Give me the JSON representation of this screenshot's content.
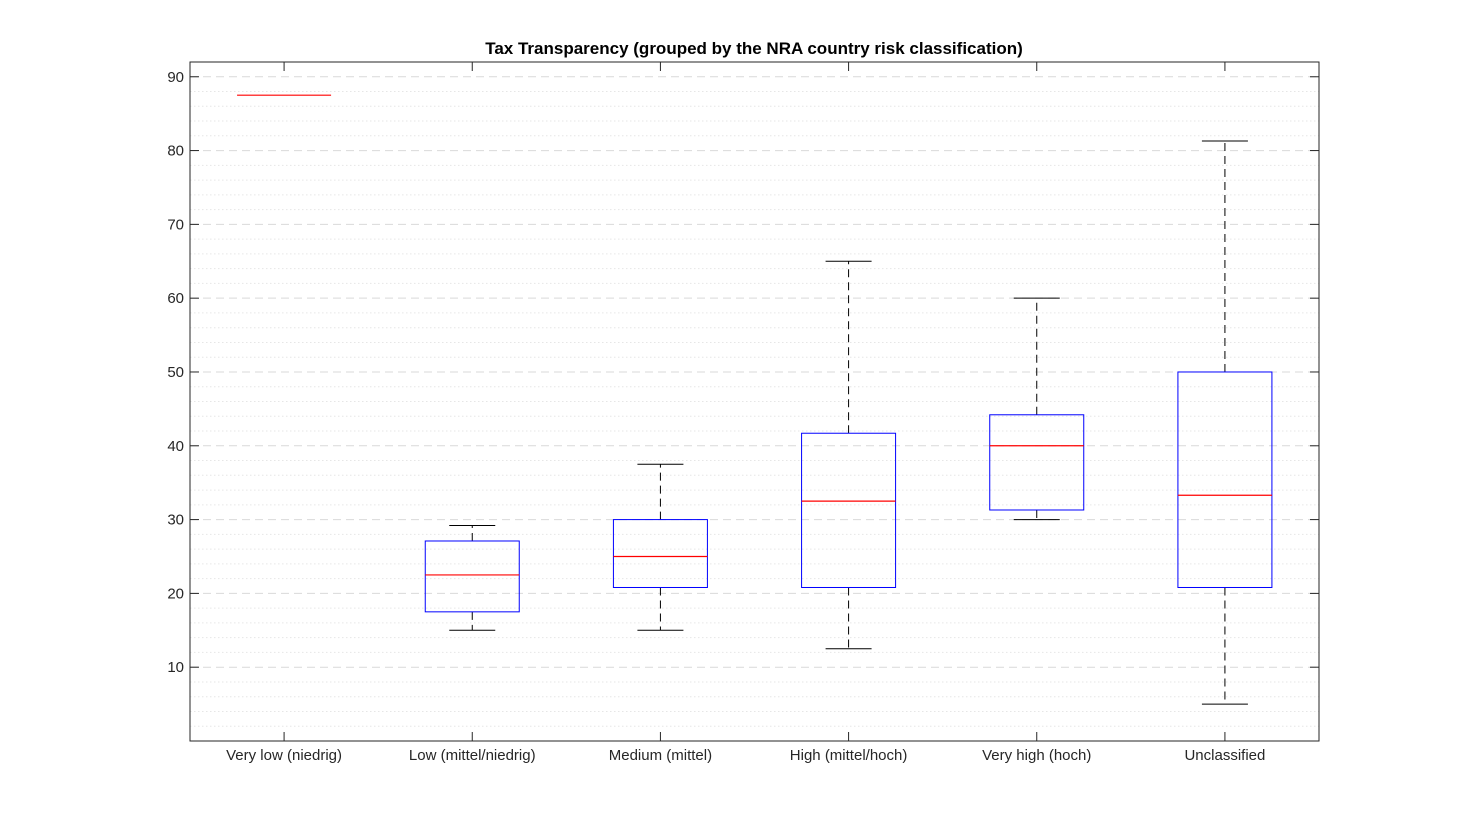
{
  "chart_data": {
    "type": "boxplot",
    "title": "Tax Transparency (grouped by the NRA country risk classification)",
    "xlabel": "",
    "ylabel": "",
    "ylim": [
      0,
      92
    ],
    "yticks": [
      10,
      20,
      30,
      40,
      50,
      60,
      70,
      80,
      90
    ],
    "ytick_labels": [
      "10",
      "20",
      "30",
      "40",
      "50",
      "60",
      "70",
      "80",
      "90"
    ],
    "grid": {
      "major": true,
      "minor": true,
      "style": "dashed"
    },
    "categories": [
      "Very low (niedrig)",
      "Low (mittel/niedrig)",
      "Medium (mittel)",
      "High (mittel/hoch)",
      "Very high (hoch)",
      "Unclassified"
    ],
    "boxes": [
      {
        "category": "Very low (niedrig)",
        "whisker_low": 87.5,
        "q1": 87.5,
        "median": 87.5,
        "q3": 87.5,
        "whisker_high": 87.5
      },
      {
        "category": "Low (mittel/niedrig)",
        "whisker_low": 15.0,
        "q1": 17.5,
        "median": 22.5,
        "q3": 27.1,
        "whisker_high": 29.2
      },
      {
        "category": "Medium (mittel)",
        "whisker_low": 15.0,
        "q1": 20.8,
        "median": 25.0,
        "q3": 30.0,
        "whisker_high": 37.5
      },
      {
        "category": "High (mittel/hoch)",
        "whisker_low": 12.5,
        "q1": 20.8,
        "median": 32.5,
        "q3": 41.7,
        "whisker_high": 65.0
      },
      {
        "category": "Very high (hoch)",
        "whisker_low": 30.0,
        "q1": 31.3,
        "median": 40.0,
        "q3": 44.2,
        "whisker_high": 60.0
      },
      {
        "category": "Unclassified",
        "whisker_low": 5.0,
        "q1": 20.8,
        "median": 33.3,
        "q3": 50.0,
        "whisker_high": 81.3
      }
    ],
    "colors": {
      "box": "#0000ff",
      "median": "#ff0000",
      "whisker": "#000000",
      "axis": "#262626",
      "grid": "#d9d9d9"
    }
  }
}
